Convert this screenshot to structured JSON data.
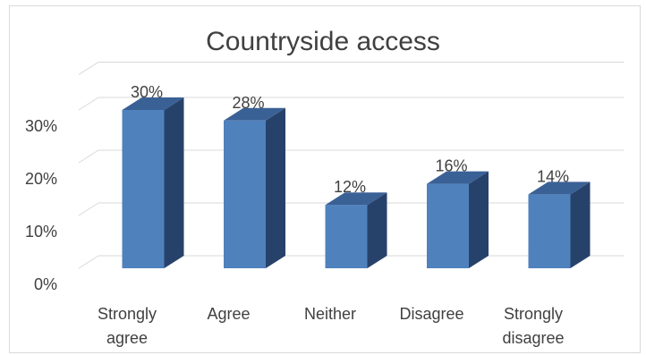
{
  "chart_data": {
    "type": "bar",
    "title": "Countryside access",
    "categories": [
      [
        "Strongly",
        "agree"
      ],
      [
        "Agree"
      ],
      [
        "Neither"
      ],
      [
        "Disagree"
      ],
      [
        "Strongly",
        "disagree"
      ]
    ],
    "values": [
      30,
      28,
      12,
      16,
      14
    ],
    "data_labels": [
      "30%",
      "28%",
      "12%",
      "16%",
      "14%"
    ],
    "yticks": [
      0,
      10,
      20,
      30
    ],
    "ytick_labels": [
      "0%",
      "10%",
      "20%",
      "30%"
    ],
    "ylim": [
      0,
      30
    ],
    "xlabel": "",
    "ylabel": "",
    "grid": true,
    "legend": "none",
    "style": "3d-column",
    "colors": {
      "front": "#4f81bd",
      "side": "#27426a",
      "top": "#3a6196",
      "grid": "#d9d9d9",
      "text": "#404040",
      "floor": "#d0d0d0"
    }
  }
}
